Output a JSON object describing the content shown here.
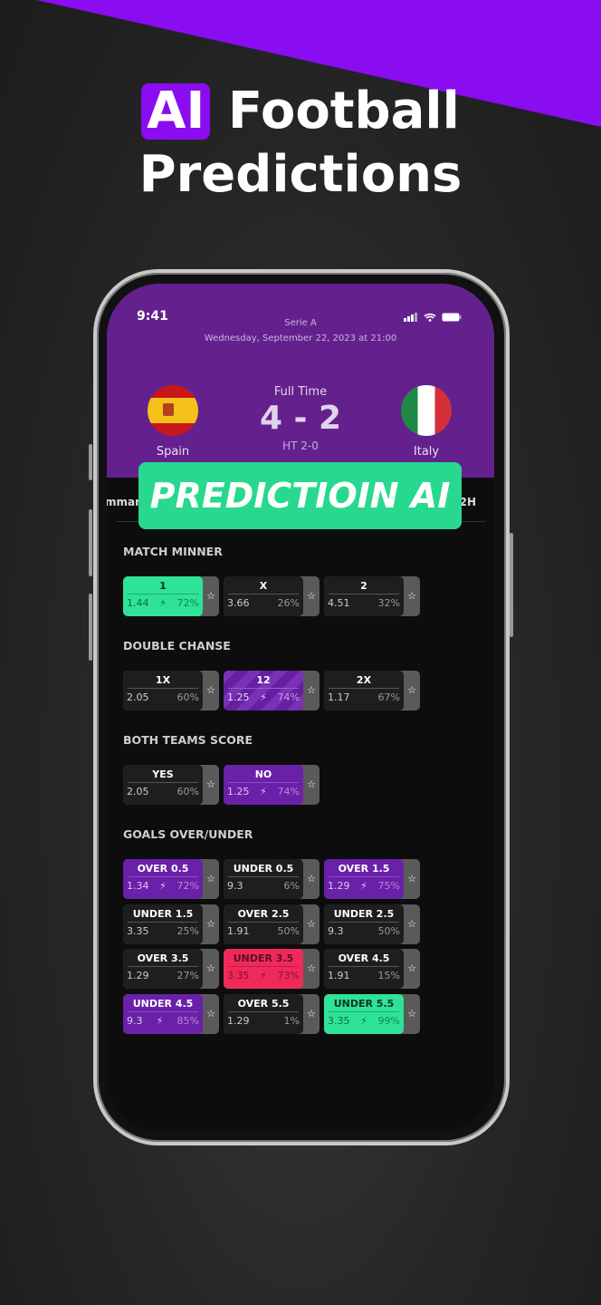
{
  "headline": {
    "ai": "AI",
    "line1": "Football",
    "line2": "Predictions"
  },
  "status": {
    "time": "9:41"
  },
  "match": {
    "league": "Serie A",
    "date": "Wednesday, September 22, 2023 at 21:00",
    "home": "Spain",
    "away": "Italy",
    "status": "Full Time",
    "score": "4 - 2",
    "halftime": "HT 2-0"
  },
  "tabs": {
    "left": "mmary",
    "right": "2H"
  },
  "banner": "PREDICTIOIN AI",
  "colors": {
    "accent": "#8a0cf0",
    "header": "#64218e",
    "green": "#2ee397",
    "purple": "#6a20a8",
    "red": "#ef2a5a"
  },
  "sections": [
    {
      "title": "MATCH MINNER",
      "items": [
        {
          "label": "1",
          "odds": "1.44",
          "pct": "72%",
          "style": "green",
          "bolt": true
        },
        {
          "label": "X",
          "odds": "3.66",
          "pct": "26%",
          "style": "dark",
          "bolt": false
        },
        {
          "label": "2",
          "odds": "4.51",
          "pct": "32%",
          "style": "dark",
          "bolt": false
        }
      ]
    },
    {
      "title": "DOUBLE CHANSE",
      "items": [
        {
          "label": "1X",
          "odds": "2.05",
          "pct": "60%",
          "style": "dark",
          "bolt": false
        },
        {
          "label": "12",
          "odds": "1.25",
          "pct": "74%",
          "style": "stripe",
          "bolt": true
        },
        {
          "label": "2X",
          "odds": "1.17",
          "pct": "67%",
          "style": "dark",
          "bolt": false
        }
      ]
    },
    {
      "title": "BOTH TEAMS SCORE",
      "items": [
        {
          "label": "YES",
          "odds": "2.05",
          "pct": "60%",
          "style": "dark",
          "bolt": false
        },
        {
          "label": "NO",
          "odds": "1.25",
          "pct": "74%",
          "style": "purple",
          "bolt": true
        }
      ]
    },
    {
      "title": "GOALS OVER/UNDER",
      "items": [
        {
          "label": "OVER 0.5",
          "odds": "1.34",
          "pct": "72%",
          "style": "purple",
          "bolt": true
        },
        {
          "label": "UNDER 0.5",
          "odds": "9.3",
          "pct": "6%",
          "style": "dark",
          "bolt": false
        },
        {
          "label": "OVER 1.5",
          "odds": "1.29",
          "pct": "75%",
          "style": "purple",
          "bolt": true
        },
        {
          "label": "UNDER 1.5",
          "odds": "3.35",
          "pct": "25%",
          "style": "dark",
          "bolt": false
        },
        {
          "label": "OVER 2.5",
          "odds": "1.91",
          "pct": "50%",
          "style": "dark",
          "bolt": false
        },
        {
          "label": "UNDER 2.5",
          "odds": "9.3",
          "pct": "50%",
          "style": "dark",
          "bolt": false
        },
        {
          "label": "OVER 3.5",
          "odds": "1.29",
          "pct": "27%",
          "style": "dark",
          "bolt": false
        },
        {
          "label": "UNDER 3.5",
          "odds": "3.35",
          "pct": "73%",
          "style": "red",
          "bolt": true
        },
        {
          "label": "OVER 4.5",
          "odds": "1.91",
          "pct": "15%",
          "style": "dark",
          "bolt": false
        },
        {
          "label": "UNDER 4.5",
          "odds": "9.3",
          "pct": "85%",
          "style": "purple",
          "bolt": true
        },
        {
          "label": "OVER 5.5",
          "odds": "1.29",
          "pct": "1%",
          "style": "dark",
          "bolt": false
        },
        {
          "label": "UNDER 5.5",
          "odds": "3.35",
          "pct": "99%",
          "style": "green",
          "bolt": true
        }
      ]
    }
  ]
}
